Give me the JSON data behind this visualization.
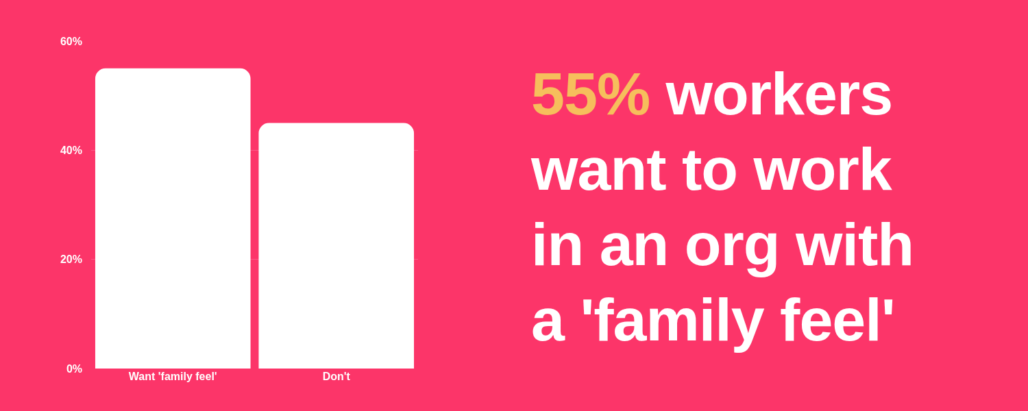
{
  "chart_data": {
    "type": "bar",
    "title": "55% workers want to work in an org with a 'family feel'",
    "categories": [
      "Want 'family feel'",
      "Don't"
    ],
    "values": [
      55,
      45
    ],
    "color": "#ffffff",
    "ylim": [
      0,
      60
    ],
    "yticks": [
      {
        "value": 0,
        "label": "0%"
      },
      {
        "value": 20,
        "label": "20%"
      },
      {
        "value": 40,
        "label": "40%"
      },
      {
        "value": 60,
        "label": "60%"
      }
    ],
    "grid": "y"
  }
}
